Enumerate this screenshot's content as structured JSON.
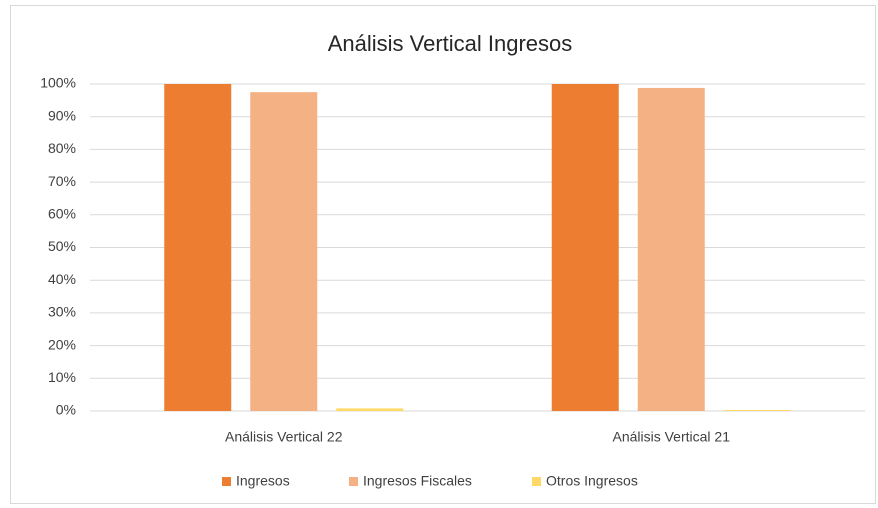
{
  "chart_data": {
    "type": "bar",
    "title": "Análisis Vertical Ingresos",
    "categories": [
      "Análisis Vertical 22",
      "Análisis Vertical 21"
    ],
    "series": [
      {
        "name": "Ingresos",
        "color": "#ed7d31",
        "values": [
          100,
          100
        ]
      },
      {
        "name": "Ingresos Fiscales",
        "color": "#f4b183",
        "values": [
          97.5,
          98.8
        ]
      },
      {
        "name": "Otros Ingresos",
        "color": "#ffd966",
        "values": [
          0.8,
          0.3
        ]
      }
    ],
    "ylim": [
      0,
      100
    ],
    "yticks": [
      {
        "value": 0,
        "label": "0%"
      },
      {
        "value": 10,
        "label": "10%"
      },
      {
        "value": 20,
        "label": "20%"
      },
      {
        "value": 30,
        "label": "30%"
      },
      {
        "value": 40,
        "label": "40%"
      },
      {
        "value": 50,
        "label": "50%"
      },
      {
        "value": 60,
        "label": "60%"
      },
      {
        "value": 70,
        "label": "70%"
      },
      {
        "value": 80,
        "label": "80%"
      },
      {
        "value": 90,
        "label": "90%"
      },
      {
        "value": 100,
        "label": "100%"
      }
    ],
    "grid": true,
    "legend": "bottom"
  }
}
